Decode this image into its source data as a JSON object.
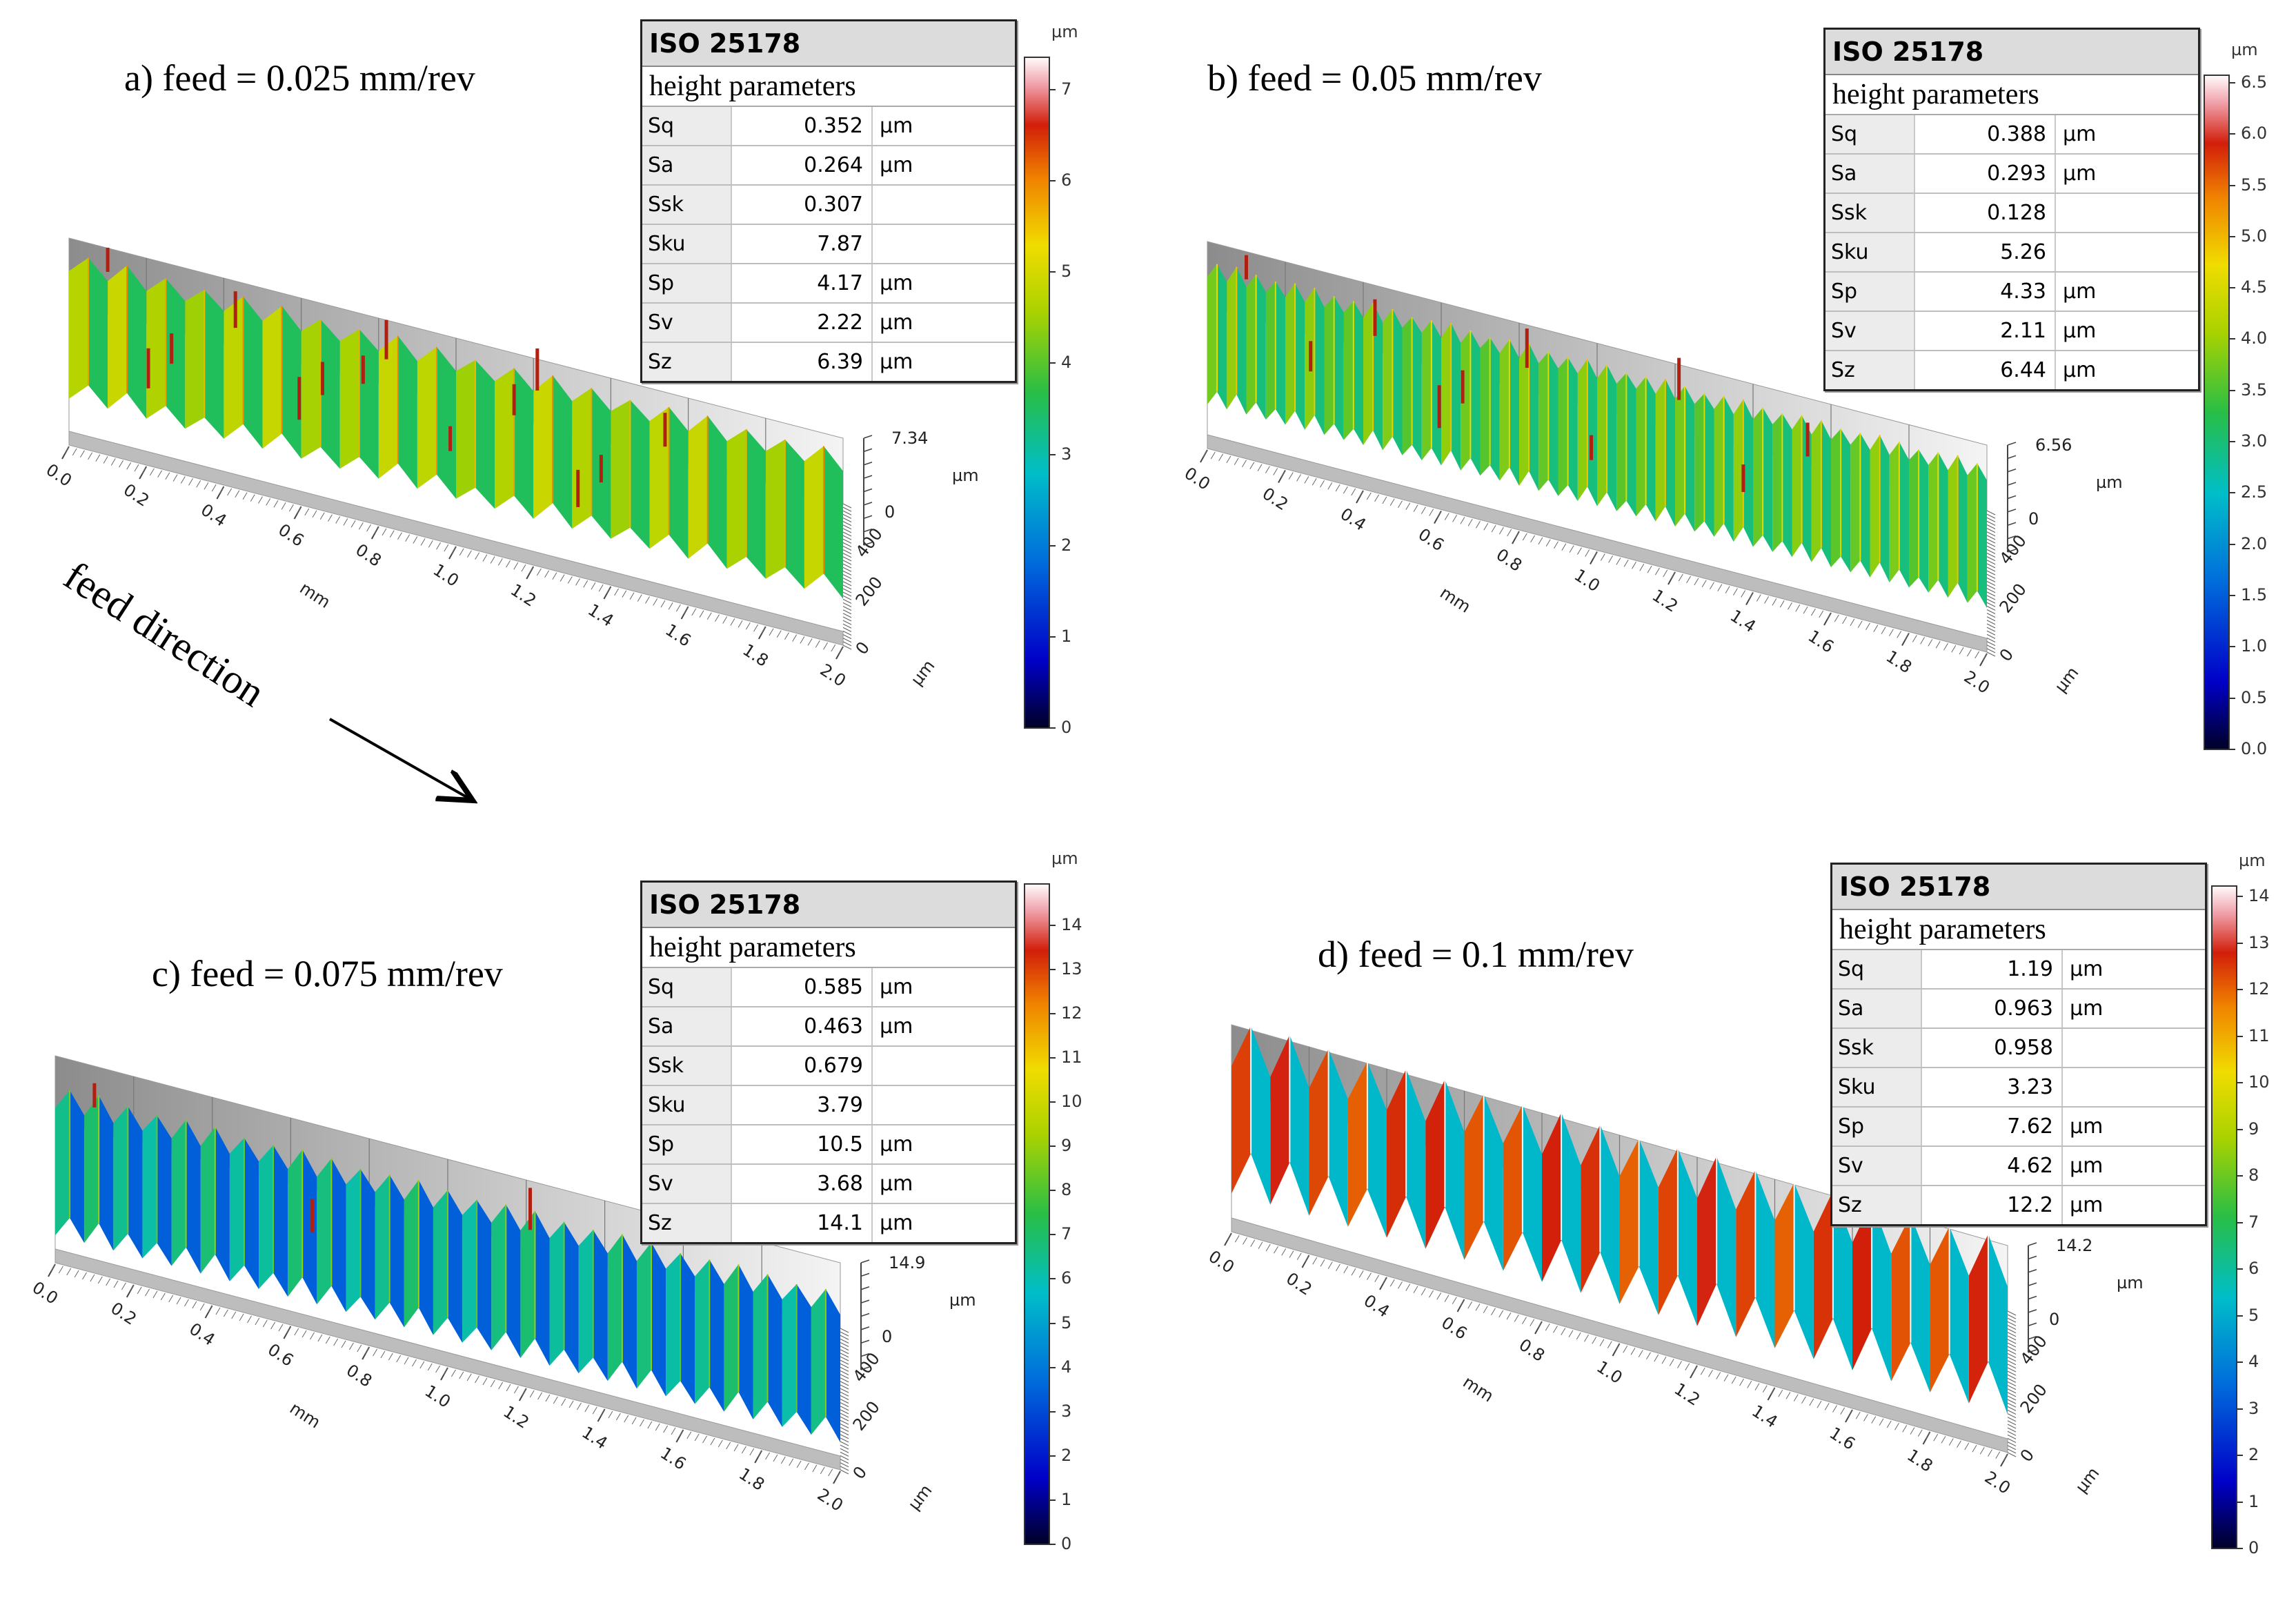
{
  "feed_direction_label": "feed direction",
  "panels": [
    {
      "label": "a)",
      "feed": "feed = 0.025 mm/rev",
      "table_title": "ISO 25178",
      "table_subtitle": "height parameters",
      "params": [
        {
          "name": "Sq",
          "value": "0.352",
          "unit": "µm"
        },
        {
          "name": "Sa",
          "value": "0.264",
          "unit": "µm"
        },
        {
          "name": "Ssk",
          "value": "0.307",
          "unit": ""
        },
        {
          "name": "Sku",
          "value": "7.87",
          "unit": ""
        },
        {
          "name": "Sp",
          "value": "4.17",
          "unit": "µm"
        },
        {
          "name": "Sv",
          "value": "2.22",
          "unit": "µm"
        },
        {
          "name": "Sz",
          "value": "6.39",
          "unit": "µm"
        }
      ],
      "colorbar_unit": "µm",
      "colorbar_ticks": [
        "0",
        "1",
        "2",
        "3",
        "4",
        "5",
        "6",
        "7"
      ],
      "colorbar_max": 7.34,
      "z_max_label": "7.34",
      "z_zero_label": "0",
      "z_unit": "µm",
      "x_ticks": [
        "0.0",
        "0.2",
        "0.4",
        "0.6",
        "0.8",
        "1.0",
        "1.2",
        "1.4",
        "1.6",
        "1.8",
        "2.0"
      ],
      "x_unit": "mm",
      "y_ticks": [
        "0",
        "200",
        "400"
      ],
      "y_unit": "µm",
      "ridges": 20,
      "base_level": 0.55,
      "amplitude": 0.12,
      "spikes": 14
    },
    {
      "label": "b)",
      "feed": "feed = 0.05 mm/rev",
      "table_title": "ISO 25178",
      "table_subtitle": "height parameters",
      "params": [
        {
          "name": "Sq",
          "value": "0.388",
          "unit": "µm"
        },
        {
          "name": "Sa",
          "value": "0.293",
          "unit": "µm"
        },
        {
          "name": "Ssk",
          "value": "0.128",
          "unit": ""
        },
        {
          "name": "Sku",
          "value": "5.26",
          "unit": ""
        },
        {
          "name": "Sp",
          "value": "4.33",
          "unit": "µm"
        },
        {
          "name": "Sv",
          "value": "2.11",
          "unit": "µm"
        },
        {
          "name": "Sz",
          "value": "6.44",
          "unit": "µm"
        }
      ],
      "colorbar_unit": "µm",
      "colorbar_ticks": [
        "0.0",
        "0.5",
        "1.0",
        "1.5",
        "2.0",
        "2.5",
        "3.0",
        "3.5",
        "4.0",
        "4.5",
        "5.0",
        "5.5",
        "6.0",
        "6.5"
      ],
      "colorbar_max": 6.56,
      "z_max_label": "6.56",
      "z_zero_label": "0",
      "z_unit": "µm",
      "x_ticks": [
        "0.0",
        "0.2",
        "0.4",
        "0.6",
        "0.8",
        "1.0",
        "1.2",
        "1.4",
        "1.6",
        "1.8",
        "2.0"
      ],
      "x_unit": "mm",
      "y_ticks": [
        "0",
        "200",
        "400"
      ],
      "y_unit": "µm",
      "ridges": 40,
      "base_level": 0.5,
      "amplitude": 0.1,
      "spikes": 10
    },
    {
      "label": "c)",
      "feed": "feed = 0.075 mm/rev",
      "table_title": "ISO 25178",
      "table_subtitle": "height parameters",
      "params": [
        {
          "name": "Sq",
          "value": "0.585",
          "unit": "µm"
        },
        {
          "name": "Sa",
          "value": "0.463",
          "unit": "µm"
        },
        {
          "name": "Ssk",
          "value": "0.679",
          "unit": ""
        },
        {
          "name": "Sku",
          "value": "3.79",
          "unit": ""
        },
        {
          "name": "Sp",
          "value": "10.5",
          "unit": "µm"
        },
        {
          "name": "Sv",
          "value": "3.68",
          "unit": "µm"
        },
        {
          "name": "Sz",
          "value": "14.1",
          "unit": "µm"
        }
      ],
      "colorbar_unit": "µm",
      "colorbar_ticks": [
        "0",
        "1",
        "2",
        "3",
        "4",
        "5",
        "6",
        "7",
        "8",
        "9",
        "10",
        "11",
        "12",
        "13",
        "14"
      ],
      "colorbar_max": 14.9,
      "z_max_label": "14.9",
      "z_zero_label": "0",
      "z_unit": "µm",
      "x_ticks": [
        "0.0",
        "0.2",
        "0.4",
        "0.6",
        "0.8",
        "1.0",
        "1.2",
        "1.4",
        "1.6",
        "1.8",
        "2.0"
      ],
      "x_unit": "mm",
      "y_ticks": [
        "0",
        "200",
        "400"
      ],
      "y_unit": "µm",
      "ridges": 27,
      "base_level": 0.32,
      "amplitude": 0.14,
      "spikes": 3
    },
    {
      "label": "d)",
      "feed": "feed = 0.1 mm/rev",
      "table_title": "ISO 25178",
      "table_subtitle": "height parameters",
      "params": [
        {
          "name": "Sq",
          "value": "1.19",
          "unit": "µm"
        },
        {
          "name": "Sa",
          "value": "0.963",
          "unit": "µm"
        },
        {
          "name": "Ssk",
          "value": "0.958",
          "unit": ""
        },
        {
          "name": "Sku",
          "value": "3.23",
          "unit": ""
        },
        {
          "name": "Sp",
          "value": "7.62",
          "unit": "µm"
        },
        {
          "name": "Sv",
          "value": "4.62",
          "unit": "µm"
        },
        {
          "name": "Sz",
          "value": "12.2",
          "unit": "µm"
        }
      ],
      "colorbar_unit": "µm",
      "colorbar_ticks": [
        "0",
        "1",
        "2",
        "3",
        "4",
        "5",
        "6",
        "7",
        "8",
        "9",
        "10",
        "11",
        "12",
        "13",
        "14"
      ],
      "colorbar_max": 14.2,
      "z_max_label": "14.2",
      "z_zero_label": "0",
      "z_unit": "µm",
      "x_ticks": [
        "0.0",
        "0.2",
        "0.4",
        "0.6",
        "0.8",
        "1.0",
        "1.2",
        "1.4",
        "1.6",
        "1.8",
        "2.0"
      ],
      "x_unit": "mm",
      "y_ticks": [
        "0",
        "200",
        "400"
      ],
      "y_unit": "µm",
      "ridges": 20,
      "base_level": 0.62,
      "amplitude": 0.3,
      "spikes": 0
    }
  ]
}
